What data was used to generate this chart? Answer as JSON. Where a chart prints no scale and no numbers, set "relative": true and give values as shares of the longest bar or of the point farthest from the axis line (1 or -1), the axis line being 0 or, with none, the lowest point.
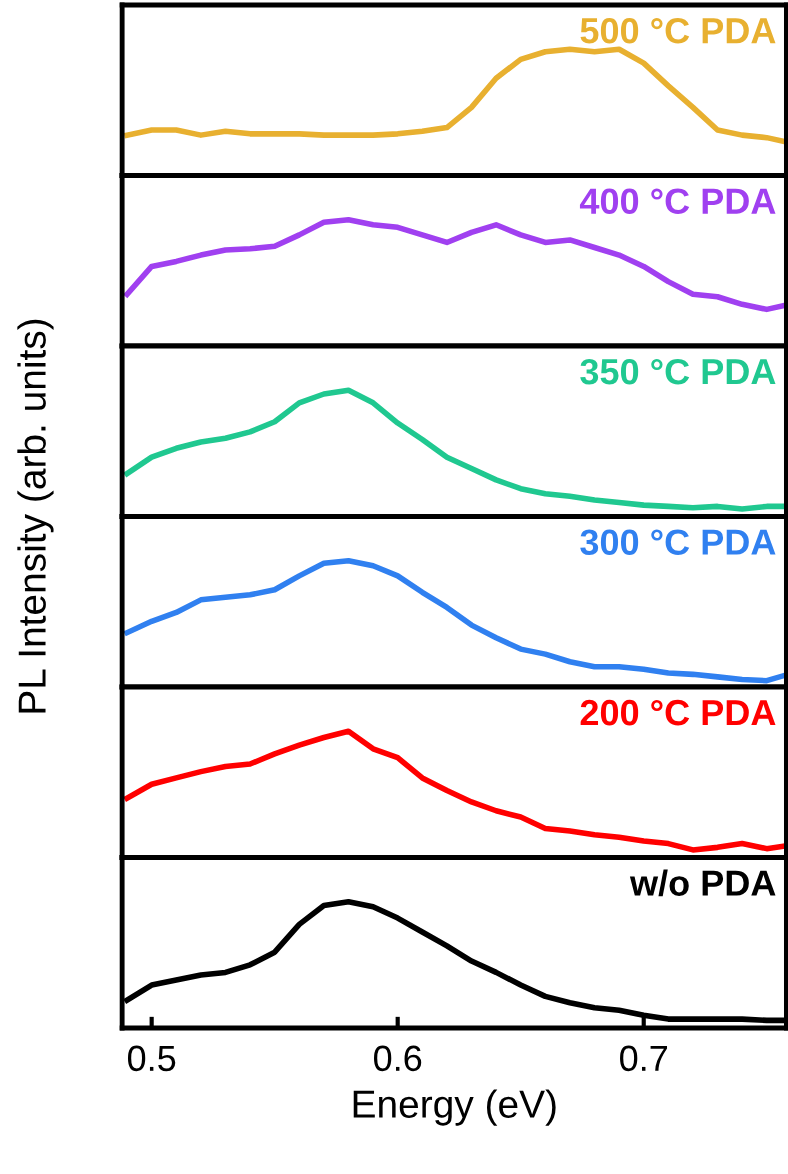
{
  "chart_data": [
    {
      "type": "line",
      "relative": true,
      "ylabel": "PL Intensity (arb. units)",
      "xlim": [
        0.488,
        0.758
      ],
      "tick_labels": false,
      "x": [
        0.49,
        0.5,
        0.51,
        0.52,
        0.53,
        0.54,
        0.55,
        0.56,
        0.57,
        0.58,
        0.59,
        0.6,
        0.61,
        0.62,
        0.63,
        0.64,
        0.65,
        0.66,
        0.67,
        0.68,
        0.69,
        0.7,
        0.71,
        0.72,
        0.73,
        0.74,
        0.75,
        0.757
      ],
      "series": [
        {
          "name": "500 °C PDA",
          "color": "#e8b030",
          "values": [
            0.32,
            0.36,
            0.36,
            0.32,
            0.35,
            0.33,
            0.33,
            0.33,
            0.32,
            0.32,
            0.32,
            0.33,
            0.35,
            0.38,
            0.54,
            0.77,
            0.92,
            0.98,
            1,
            0.98,
            1,
            0.89,
            0.71,
            0.54,
            0.36,
            0.32,
            0.3,
            0.27
          ]
        }
      ]
    },
    {
      "type": "line",
      "relative": true,
      "xlim": [
        0.488,
        0.758
      ],
      "tick_labels": false,
      "x": [
        0.49,
        0.5,
        0.51,
        0.52,
        0.53,
        0.54,
        0.55,
        0.56,
        0.57,
        0.58,
        0.59,
        0.6,
        0.61,
        0.62,
        0.63,
        0.64,
        0.65,
        0.66,
        0.67,
        0.68,
        0.69,
        0.7,
        0.71,
        0.72,
        0.73,
        0.74,
        0.75,
        0.757
      ],
      "series": [
        {
          "name": "400 °C PDA",
          "color": "#a040f0",
          "values": [
            0.41,
            0.63,
            0.67,
            0.72,
            0.76,
            0.77,
            0.79,
            0.88,
            0.98,
            1,
            0.96,
            0.94,
            0.88,
            0.82,
            0.9,
            0.96,
            0.88,
            0.82,
            0.84,
            0.78,
            0.72,
            0.63,
            0.51,
            0.41,
            0.39,
            0.33,
            0.29,
            0.32
          ]
        }
      ]
    },
    {
      "type": "line",
      "relative": true,
      "xlim": [
        0.488,
        0.758
      ],
      "tick_labels": false,
      "x": [
        0.49,
        0.5,
        0.51,
        0.52,
        0.53,
        0.54,
        0.55,
        0.56,
        0.57,
        0.58,
        0.59,
        0.6,
        0.61,
        0.62,
        0.63,
        0.64,
        0.65,
        0.66,
        0.67,
        0.68,
        0.69,
        0.7,
        0.71,
        0.72,
        0.73,
        0.74,
        0.75,
        0.757
      ],
      "series": [
        {
          "name": "350 °C PDA",
          "color": "#20c890",
          "values": [
            0.34,
            0.47,
            0.54,
            0.59,
            0.62,
            0.67,
            0.75,
            0.9,
            0.97,
            1,
            0.9,
            0.74,
            0.61,
            0.47,
            0.38,
            0.29,
            0.22,
            0.18,
            0.16,
            0.13,
            0.11,
            0.09,
            0.08,
            0.07,
            0.08,
            0.06,
            0.08,
            0.08
          ]
        }
      ]
    },
    {
      "type": "line",
      "relative": true,
      "xlim": [
        0.488,
        0.758
      ],
      "tick_labels": false,
      "x": [
        0.49,
        0.5,
        0.51,
        0.52,
        0.53,
        0.54,
        0.55,
        0.56,
        0.57,
        0.58,
        0.59,
        0.6,
        0.61,
        0.62,
        0.63,
        0.64,
        0.65,
        0.66,
        0.67,
        0.68,
        0.69,
        0.7,
        0.71,
        0.72,
        0.73,
        0.74,
        0.75,
        0.757
      ],
      "series": [
        {
          "name": "300 °C PDA",
          "color": "#3080f0",
          "values": [
            0.43,
            0.52,
            0.59,
            0.69,
            0.71,
            0.73,
            0.77,
            0.88,
            0.98,
            1,
            0.96,
            0.88,
            0.75,
            0.63,
            0.49,
            0.39,
            0.3,
            0.26,
            0.2,
            0.16,
            0.16,
            0.14,
            0.11,
            0.1,
            0.08,
            0.06,
            0.05,
            0.09
          ]
        }
      ]
    },
    {
      "type": "line",
      "relative": true,
      "xlim": [
        0.488,
        0.758
      ],
      "tick_labels": false,
      "x": [
        0.49,
        0.5,
        0.51,
        0.52,
        0.53,
        0.54,
        0.55,
        0.56,
        0.57,
        0.58,
        0.59,
        0.6,
        0.61,
        0.62,
        0.63,
        0.64,
        0.65,
        0.66,
        0.67,
        0.68,
        0.69,
        0.7,
        0.71,
        0.72,
        0.73,
        0.74,
        0.75,
        0.757
      ],
      "series": [
        {
          "name": "200 °C PDA",
          "color": "#ff0000",
          "values": [
            0.47,
            0.58,
            0.63,
            0.68,
            0.72,
            0.74,
            0.82,
            0.89,
            0.95,
            1,
            0.86,
            0.79,
            0.63,
            0.53,
            0.44,
            0.37,
            0.32,
            0.23,
            0.21,
            0.18,
            0.16,
            0.13,
            0.11,
            0.06,
            0.08,
            0.11,
            0.07,
            0.09
          ]
        }
      ]
    },
    {
      "type": "line",
      "relative": true,
      "xlabel": "Energy (eV)",
      "xlim": [
        0.488,
        0.758
      ],
      "xticks": [
        0.5,
        0.6,
        0.7
      ],
      "tick_labels": "x",
      "x": [
        0.49,
        0.5,
        0.51,
        0.52,
        0.53,
        0.54,
        0.55,
        0.56,
        0.57,
        0.58,
        0.59,
        0.6,
        0.61,
        0.62,
        0.63,
        0.64,
        0.65,
        0.66,
        0.67,
        0.68,
        0.69,
        0.7,
        0.71,
        0.72,
        0.73,
        0.74,
        0.75,
        0.757
      ],
      "series": [
        {
          "name": "w/o PDA",
          "color": "#000000",
          "values": [
            0.22,
            0.34,
            0.38,
            0.42,
            0.44,
            0.5,
            0.6,
            0.82,
            0.97,
            1,
            0.96,
            0.87,
            0.76,
            0.65,
            0.53,
            0.44,
            0.34,
            0.25,
            0.2,
            0.16,
            0.14,
            0.1,
            0.07,
            0.07,
            0.07,
            0.07,
            0.06,
            0.06
          ]
        }
      ]
    }
  ]
}
